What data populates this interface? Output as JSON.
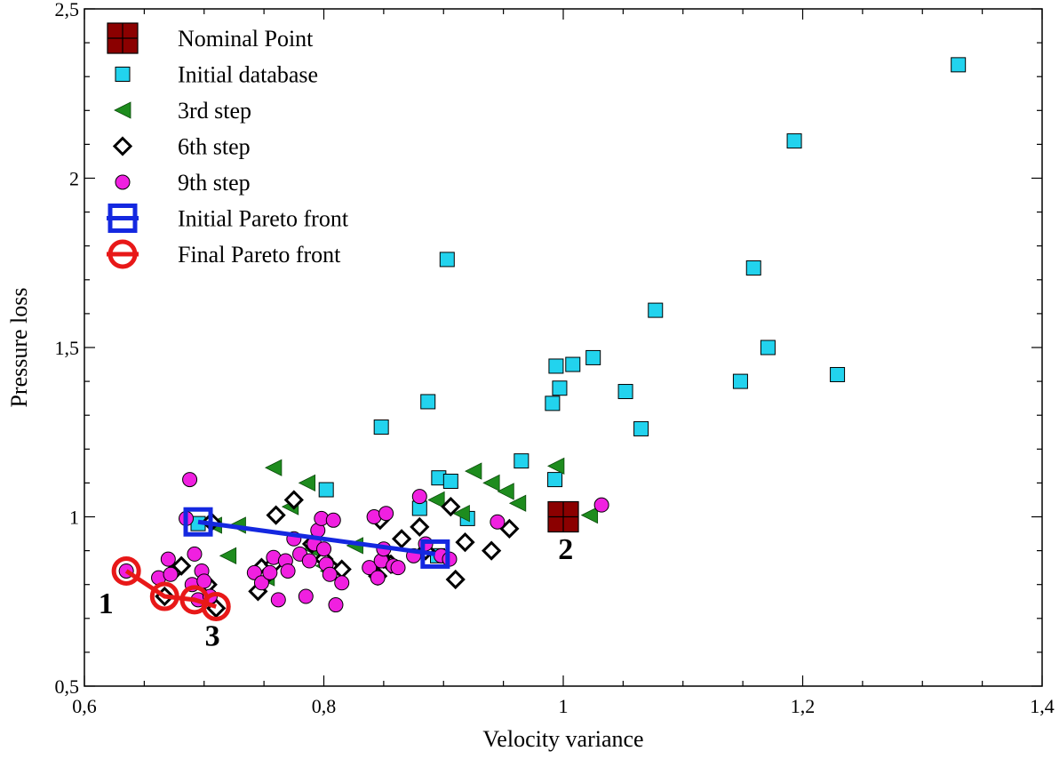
{
  "chart_data": {
    "type": "scatter",
    "xlabel": "Velocity variance",
    "ylabel": "Pressure loss",
    "xlim": [
      0.6,
      1.4
    ],
    "ylim": [
      0.5,
      2.5
    ],
    "x_ticks": [
      0.6,
      0.8,
      1.0,
      1.2,
      1.4
    ],
    "x_tick_labels": [
      "0,6",
      "0,8",
      "1",
      "1,2",
      "1,4"
    ],
    "y_ticks": [
      0.5,
      1.0,
      1.5,
      2.0,
      2.5
    ],
    "y_tick_labels": [
      "0,5",
      "1",
      "1,5",
      "2",
      "2,5"
    ],
    "grid": false,
    "legend_position": "top-left",
    "series": [
      {
        "name": "Nominal Point",
        "marker": "square-cross",
        "color": "#8B0000",
        "points": [
          [
            1.0,
            1.0
          ]
        ]
      },
      {
        "name": "Initial database",
        "marker": "square",
        "color": "#22D3EE",
        "points": [
          [
            0.695,
            0.98
          ],
          [
            0.802,
            1.08
          ],
          [
            0.848,
            1.265
          ],
          [
            0.88,
            1.025
          ],
          [
            0.887,
            1.34
          ],
          [
            0.895,
            0.885
          ],
          [
            0.896,
            1.115
          ],
          [
            0.903,
            1.76
          ],
          [
            0.906,
            1.105
          ],
          [
            0.92,
            0.995
          ],
          [
            0.965,
            1.165
          ],
          [
            0.991,
            1.335
          ],
          [
            0.993,
            1.11
          ],
          [
            0.994,
            1.445
          ],
          [
            0.997,
            1.38
          ],
          [
            1.008,
            1.45
          ],
          [
            1.025,
            1.47
          ],
          [
            1.052,
            1.37
          ],
          [
            1.065,
            1.26
          ],
          [
            1.077,
            1.61
          ],
          [
            1.148,
            1.4
          ],
          [
            1.159,
            1.735
          ],
          [
            1.171,
            1.5
          ],
          [
            1.193,
            2.11
          ],
          [
            1.229,
            1.42
          ],
          [
            1.33,
            2.335
          ]
        ]
      },
      {
        "name": "3rd step",
        "marker": "triangle-left",
        "color": "#1E8C1E",
        "points": [
          [
            0.708,
            0.975
          ],
          [
            0.72,
            0.885
          ],
          [
            0.728,
            0.975
          ],
          [
            0.752,
            0.82
          ],
          [
            0.758,
            1.145
          ],
          [
            0.772,
            1.03
          ],
          [
            0.786,
            1.1
          ],
          [
            0.79,
            0.905
          ],
          [
            0.8,
            0.855
          ],
          [
            0.804,
            0.84
          ],
          [
            0.826,
            0.915
          ],
          [
            0.894,
            1.05
          ],
          [
            0.915,
            1.01
          ],
          [
            0.925,
            1.135
          ],
          [
            0.94,
            1.1
          ],
          [
            0.952,
            1.075
          ],
          [
            0.962,
            1.04
          ],
          [
            0.994,
            1.15
          ],
          [
            1.022,
            1.005
          ]
        ]
      },
      {
        "name": "6th step",
        "marker": "diamond",
        "color": "#000000",
        "points": [
          [
            0.667,
            0.765
          ],
          [
            0.675,
            0.84
          ],
          [
            0.681,
            0.855
          ],
          [
            0.703,
            0.8
          ],
          [
            0.706,
            0.985
          ],
          [
            0.71,
            0.73
          ],
          [
            0.745,
            0.78
          ],
          [
            0.748,
            0.85
          ],
          [
            0.75,
            0.82
          ],
          [
            0.758,
            0.86
          ],
          [
            0.76,
            1.005
          ],
          [
            0.775,
            1.05
          ],
          [
            0.79,
            0.92
          ],
          [
            0.8,
            0.875
          ],
          [
            0.806,
            0.85
          ],
          [
            0.815,
            0.845
          ],
          [
            0.845,
            0.825
          ],
          [
            0.847,
            0.99
          ],
          [
            0.85,
            0.875
          ],
          [
            0.856,
            0.86
          ],
          [
            0.865,
            0.935
          ],
          [
            0.88,
            0.97
          ],
          [
            0.885,
            0.9
          ],
          [
            0.906,
            1.03
          ],
          [
            0.91,
            0.815
          ],
          [
            0.918,
            0.925
          ],
          [
            0.94,
            0.9
          ],
          [
            0.955,
            0.965
          ]
        ]
      },
      {
        "name": "9th step",
        "marker": "circle",
        "color": "#F020E0",
        "points": [
          [
            0.635,
            0.84
          ],
          [
            0.662,
            0.82
          ],
          [
            0.67,
            0.875
          ],
          [
            0.672,
            0.83
          ],
          [
            0.685,
            0.995
          ],
          [
            0.688,
            1.11
          ],
          [
            0.69,
            0.8
          ],
          [
            0.692,
            0.89
          ],
          [
            0.695,
            0.755
          ],
          [
            0.698,
            0.84
          ],
          [
            0.7,
            0.81
          ],
          [
            0.705,
            0.765
          ],
          [
            0.742,
            0.835
          ],
          [
            0.748,
            0.805
          ],
          [
            0.755,
            0.835
          ],
          [
            0.758,
            0.88
          ],
          [
            0.762,
            0.755
          ],
          [
            0.768,
            0.87
          ],
          [
            0.77,
            0.84
          ],
          [
            0.775,
            0.935
          ],
          [
            0.78,
            0.89
          ],
          [
            0.785,
            0.765
          ],
          [
            0.788,
            0.87
          ],
          [
            0.792,
            0.92
          ],
          [
            0.795,
            0.96
          ],
          [
            0.798,
            0.995
          ],
          [
            0.8,
            0.905
          ],
          [
            0.802,
            0.86
          ],
          [
            0.805,
            0.83
          ],
          [
            0.808,
            0.99
          ],
          [
            0.81,
            0.74
          ],
          [
            0.815,
            0.805
          ],
          [
            0.838,
            0.85
          ],
          [
            0.842,
            1.0
          ],
          [
            0.845,
            0.82
          ],
          [
            0.848,
            0.87
          ],
          [
            0.85,
            0.905
          ],
          [
            0.852,
            1.01
          ],
          [
            0.858,
            0.855
          ],
          [
            0.862,
            0.85
          ],
          [
            0.875,
            0.885
          ],
          [
            0.88,
            1.06
          ],
          [
            0.885,
            0.92
          ],
          [
            0.898,
            0.885
          ],
          [
            0.905,
            0.875
          ],
          [
            0.945,
            0.985
          ],
          [
            1.032,
            1.035
          ]
        ]
      },
      {
        "name": "Initial Pareto front",
        "marker": "square-line",
        "color": "#1428E0",
        "connected": true,
        "points": [
          [
            0.695,
            0.985
          ],
          [
            0.893,
            0.89
          ]
        ]
      },
      {
        "name": "Final Pareto front",
        "marker": "circle-line",
        "color": "#E81818",
        "connected": true,
        "points": [
          [
            0.635,
            0.84
          ],
          [
            0.667,
            0.765
          ],
          [
            0.692,
            0.755
          ],
          [
            0.71,
            0.735
          ]
        ]
      }
    ],
    "annotations": [
      {
        "text": "1",
        "x": 0.618,
        "y": 0.715
      },
      {
        "text": "2",
        "x": 1.002,
        "y": 0.875
      },
      {
        "text": "3",
        "x": 0.707,
        "y": 0.62
      }
    ]
  }
}
